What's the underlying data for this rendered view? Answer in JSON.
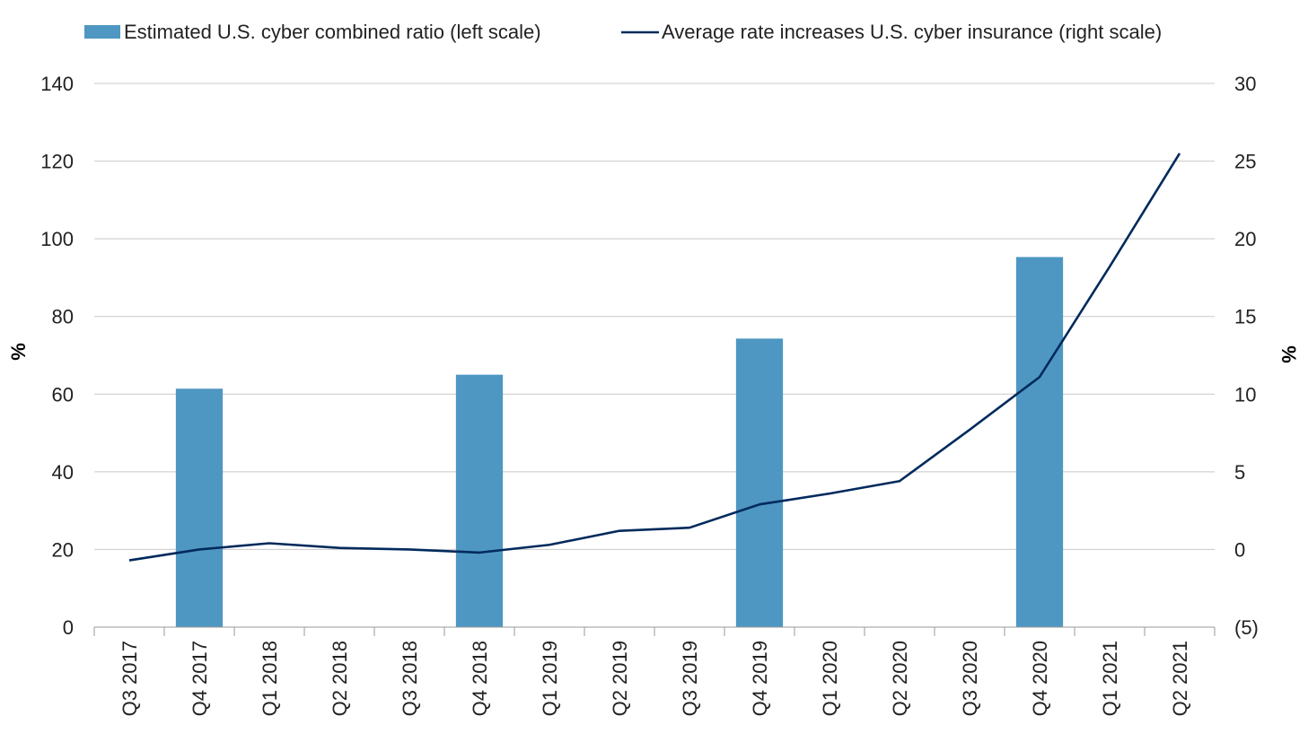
{
  "chart_data": {
    "type": "bar+line",
    "categories": [
      "Q3 2017",
      "Q4 2017",
      "Q1 2018",
      "Q2 2018",
      "Q3 2018",
      "Q4 2018",
      "Q1 2019",
      "Q2 2019",
      "Q3 2019",
      "Q4 2019",
      "Q1 2020",
      "Q2 2020",
      "Q3 2020",
      "Q4 2020",
      "Q1 2021",
      "Q2 2021"
    ],
    "series": [
      {
        "name": "Estimated U.S. cyber combined ratio (left scale)",
        "type": "bar",
        "axis": "left",
        "color": "#4e97c2",
        "values": [
          null,
          61.4,
          null,
          null,
          null,
          65.0,
          null,
          null,
          null,
          74.3,
          null,
          null,
          null,
          95.3,
          null,
          null
        ]
      },
      {
        "name": "Average rate increases U.S. cyber insurance (right scale)",
        "type": "line",
        "axis": "right",
        "color": "#002a5c",
        "values": [
          -0.7,
          0.0,
          0.4,
          0.1,
          0.0,
          -0.2,
          0.3,
          1.2,
          1.4,
          2.9,
          3.6,
          4.4,
          7.7,
          11.1,
          18.2,
          25.5
        ]
      }
    ],
    "left_axis": {
      "label": "%",
      "ylim": [
        0,
        140
      ],
      "ticks": [
        "0",
        "20",
        "40",
        "60",
        "80",
        "100",
        "120",
        "140"
      ]
    },
    "right_axis": {
      "label": "%",
      "ylim": [
        -5,
        30
      ],
      "ticks": [
        "(5)",
        "0",
        "5",
        "10",
        "15",
        "20",
        "25",
        "30"
      ]
    },
    "grid": true,
    "legend_position": "top"
  }
}
